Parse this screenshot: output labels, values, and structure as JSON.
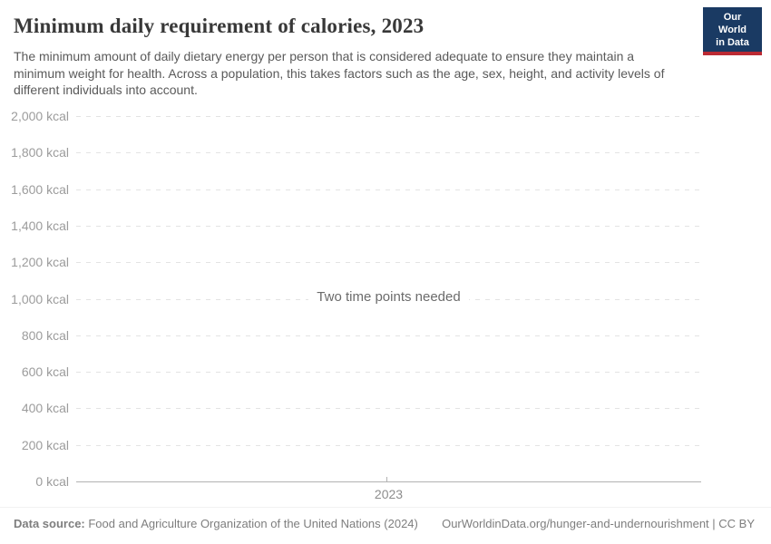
{
  "header": {
    "title": "Minimum daily requirement of calories, 2023",
    "logo_line1": "Our World",
    "logo_line2": "in Data"
  },
  "subtitle": "The minimum amount of daily dietary energy per person that is considered adequate to ensure they maintain a minimum weight for health. Across a population, this takes factors such as the age, sex, height, and activity levels of different individuals into account.",
  "chart_data": {
    "type": "line",
    "title": "Minimum daily requirement of calories, 2023",
    "series": [],
    "empty_message": "Two time points needed",
    "ylim": [
      0,
      2000
    ],
    "ytick_values": [
      0,
      200,
      400,
      600,
      800,
      1000,
      1200,
      1400,
      1600,
      1800,
      2000
    ],
    "ytick_labels": [
      "0 kcal",
      "200 kcal",
      "400 kcal",
      "600 kcal",
      "800 kcal",
      "1,000 kcal",
      "1,200 kcal",
      "1,400 kcal",
      "1,600 kcal",
      "1,800 kcal",
      "2,000 kcal"
    ],
    "xtick_labels": [
      "2023"
    ],
    "grid": true,
    "legend": "none"
  },
  "footer": {
    "datasource_label": "Data source:",
    "datasource_value": " Food and Agriculture Organization of the United Nations (2024)",
    "link": "OurWorldinData.org/hunger-and-undernourishment | CC BY"
  },
  "colors": {
    "logo_bg": "#1a3a63",
    "logo_stripe": "#bb2a33",
    "gridline": "#e3e3e3",
    "axis": "#b2b2b2",
    "tick_label_text": "#9c9c9c"
  }
}
